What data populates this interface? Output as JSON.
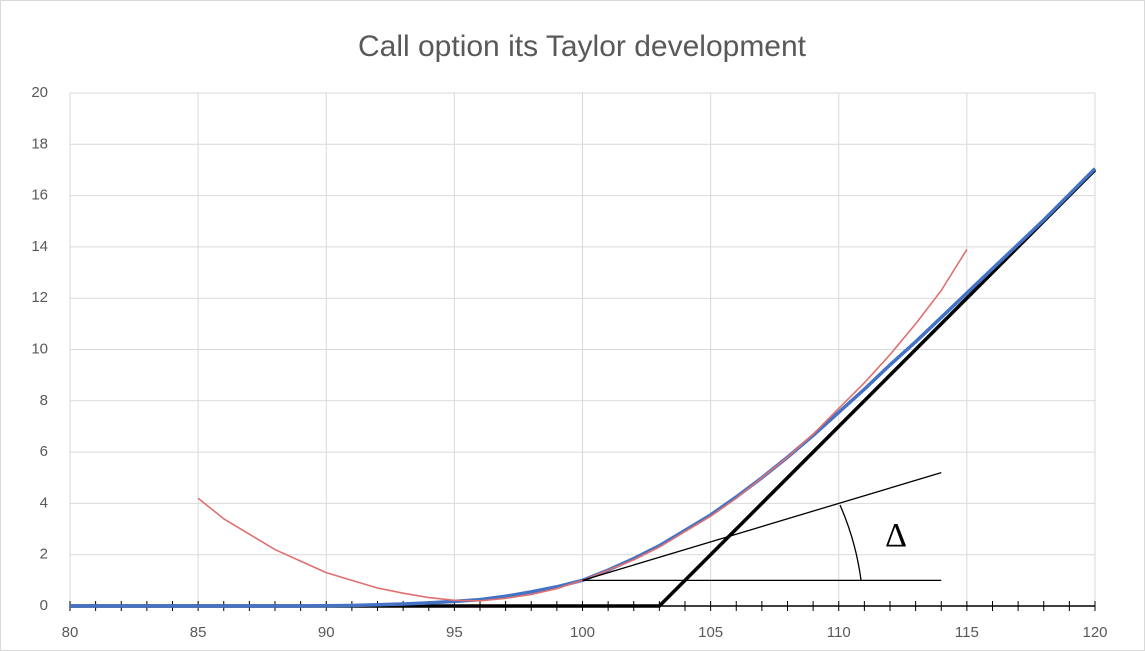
{
  "chart_data": {
    "type": "line",
    "title": "Call option its Taylor development",
    "xlim": [
      80,
      120
    ],
    "xticks": [
      80,
      85,
      90,
      95,
      100,
      105,
      110,
      115,
      120
    ],
    "xminorticks": [
      80,
      81,
      82,
      83,
      84,
      85,
      86,
      87,
      88,
      89,
      90,
      91,
      92,
      93,
      94,
      95,
      96,
      97,
      98,
      99,
      100,
      101,
      102,
      103,
      104,
      105,
      106,
      107,
      108,
      109,
      110,
      111,
      112,
      113,
      114,
      115,
      116,
      117,
      118,
      119,
      120
    ],
    "ylim": [
      0,
      20
    ],
    "yticks": [
      0,
      2,
      4,
      6,
      8,
      10,
      12,
      14,
      16,
      18,
      20
    ],
    "grid": true,
    "annotation": "Δ",
    "series": [
      {
        "color": "#000000",
        "width": 3.5,
        "x": [
          80,
          103,
          120
        ],
        "values": [
          0,
          0,
          17
        ]
      },
      {
        "color": "#4472c4",
        "width": 3.5,
        "x": [
          80,
          81,
          82,
          83,
          84,
          85,
          86,
          87,
          88,
          89,
          90,
          91,
          92,
          93,
          94,
          95,
          96,
          97,
          98,
          99,
          100,
          101,
          102,
          103,
          104,
          105,
          106,
          107,
          108,
          109,
          110,
          111,
          112,
          113,
          114,
          115,
          116,
          117,
          118,
          119,
          120
        ],
        "values": [
          0,
          0,
          0,
          0,
          0,
          0,
          0,
          0,
          0,
          0,
          0.01,
          0.02,
          0.05,
          0.08,
          0.12,
          0.18,
          0.25,
          0.38,
          0.55,
          0.75,
          1.0,
          1.4,
          1.85,
          2.35,
          2.95,
          3.55,
          4.25,
          5.0,
          5.8,
          6.65,
          7.55,
          8.45,
          9.4,
          10.3,
          11.25,
          12.2,
          13.15,
          14.1,
          15.05,
          16.05,
          17.05
        ]
      },
      {
        "color": "#e07070",
        "width": 1.6,
        "x": [
          85,
          86,
          87,
          88,
          89,
          90,
          91,
          92,
          93,
          94,
          95,
          96,
          97,
          98,
          99,
          100,
          101,
          102,
          103,
          104,
          105,
          106,
          107,
          108,
          109,
          110,
          111,
          112,
          113,
          114,
          115
        ],
        "values": [
          4.2,
          3.4,
          2.8,
          2.2,
          1.75,
          1.3,
          1.0,
          0.7,
          0.5,
          0.33,
          0.22,
          0.2,
          0.3,
          0.45,
          0.68,
          1.0,
          1.4,
          1.8,
          2.3,
          2.9,
          3.5,
          4.2,
          5.0,
          5.8,
          6.7,
          7.7,
          8.7,
          9.8,
          11.0,
          12.3,
          13.9
        ]
      },
      {
        "color": "#000000",
        "width": 1.3,
        "x": [
          100,
          114
        ],
        "values": [
          1,
          5.2
        ]
      },
      {
        "color": "#000000",
        "width": 1.3,
        "x": [
          100,
          114
        ],
        "values": [
          1,
          1
        ]
      }
    ]
  }
}
